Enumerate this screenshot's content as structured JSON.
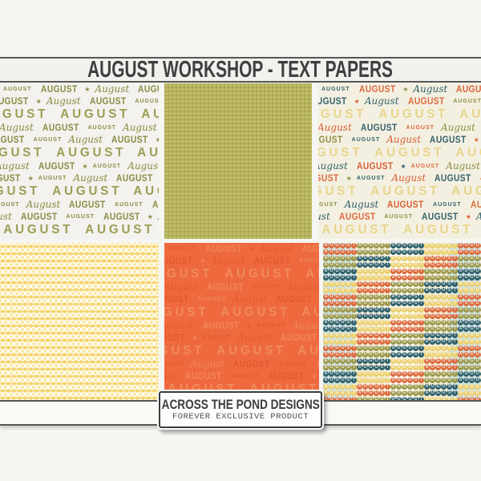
{
  "title_banner": {
    "text": "AUGUST WORKSHOP - TEXT PAPERS"
  },
  "brand_label": {
    "line1": "ACROSS THE POND DESIGNS",
    "line2": "FOREVER EXCLUSIVE PRODUCT"
  },
  "pattern_words": {
    "caps": "AUGUST",
    "script": "August",
    "star": "★"
  },
  "papers": [
    {
      "name": "august-text-olive-on-white",
      "description": "White paper covered with AUGUST in mixed olive typefaces and stars",
      "bg": "#f3f2ee",
      "palette": [
        "#8b8b44",
        "#8b8b44",
        "#8b8b44"
      ],
      "big_color": "#9d9d55"
    },
    {
      "name": "olive-texture",
      "description": "Olive green paper with tiny tone-on-tone texture",
      "bg": "#b4b15a",
      "accent": "#c7c47a"
    },
    {
      "name": "august-text-multicolor-on-cream",
      "description": "Cream paper covered with AUGUST in orange, teal, olive and navy with stars",
      "bg": "#f4f0e1",
      "palette": [
        "#33606c",
        "#dc693c",
        "#8f8f48",
        "#2e6069",
        "#d85f35"
      ],
      "big_color": "#e8d58c"
    },
    {
      "name": "yellow-lattice",
      "description": "Pale yellow dotted lattice paper",
      "bg": "#fefdf4",
      "accent": "#f5d369"
    },
    {
      "name": "orange-tone-on-tone-text",
      "description": "Orange paper with tone-on-tone AUGUST text",
      "bg": "#ee6a3e",
      "palette": [
        "#e25830",
        "#f2855c",
        "#e25830"
      ],
      "big_color": "#f18a5e"
    },
    {
      "name": "circle-letters-plaid",
      "description": "Rows of tiny letter circles spelling AUGUST in plaid color blocks",
      "stripe_colors": [
        "#cfe2e1",
        "#f2ecd7"
      ],
      "circle_palette": [
        "#dc693c",
        "#9b984b",
        "#2f616b",
        "#eccf6d"
      ]
    }
  ]
}
